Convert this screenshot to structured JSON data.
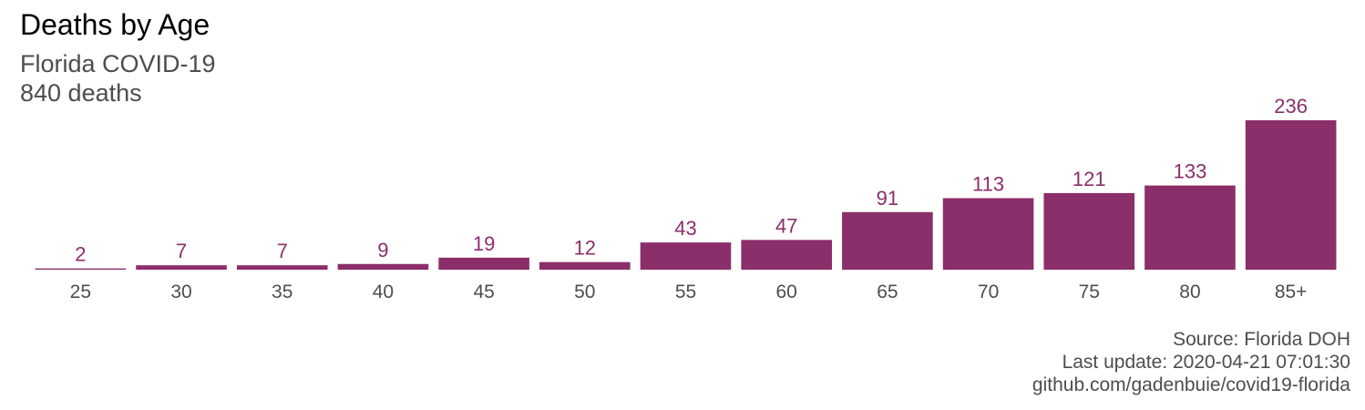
{
  "chart_data": {
    "type": "bar",
    "title": "Deaths by Age",
    "subtitle": [
      "Florida COVID-19",
      "840 deaths"
    ],
    "categories": [
      "25",
      "30",
      "35",
      "40",
      "45",
      "50",
      "55",
      "60",
      "65",
      "70",
      "75",
      "80",
      "85+"
    ],
    "values": [
      2,
      7,
      7,
      9,
      19,
      12,
      43,
      47,
      91,
      113,
      121,
      133,
      236
    ],
    "data_labels": true,
    "xlabel": "",
    "ylabel": "",
    "ylim": [
      0,
      236
    ],
    "grid": false,
    "legend": "none",
    "colors": {
      "bar": "#8b2f6a",
      "label": "#8b2f6a",
      "tick": "#4d4d4d"
    }
  },
  "caption": {
    "source": "Source: Florida DOH",
    "update": "Last update: 2020-04-21 07:01:30",
    "repo": "github.com/gadenbuie/covid19-florida"
  }
}
